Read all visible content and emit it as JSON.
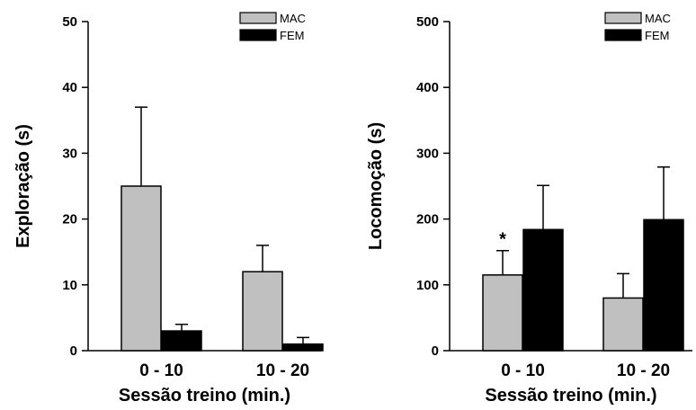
{
  "chart_data": [
    {
      "type": "bar",
      "categories": [
        "0 - 10",
        "10 - 20"
      ],
      "series": [
        {
          "name": "MAC",
          "values": [
            25,
            12
          ],
          "errors": [
            12,
            4
          ],
          "color": "#c0c0c0"
        },
        {
          "name": "FEM",
          "values": [
            3,
            1
          ],
          "errors": [
            1,
            1
          ],
          "color": "#000000"
        }
      ],
      "xlabel": "Sessão treino (min.)",
      "ylabel": "Exploração (s)",
      "ylim": [
        0,
        50
      ],
      "yticks": [
        "0",
        "10",
        "20",
        "30",
        "40",
        "50"
      ],
      "grid": false,
      "legend": "top-right",
      "annotations": []
    },
    {
      "type": "bar",
      "categories": [
        "0 - 10",
        "10 - 20"
      ],
      "series": [
        {
          "name": "MAC",
          "values": [
            115,
            80
          ],
          "errors": [
            37,
            37
          ],
          "color": "#c0c0c0"
        },
        {
          "name": "FEM",
          "values": [
            184,
            199
          ],
          "errors": [
            67,
            80
          ],
          "color": "#000000"
        }
      ],
      "xlabel": "Sessão treino (min.)",
      "ylabel": "Locomoção (s)",
      "ylim": [
        0,
        500
      ],
      "yticks": [
        "0",
        "100",
        "200",
        "300",
        "400",
        "500"
      ],
      "grid": false,
      "legend": "top-right",
      "annotations": [
        {
          "text": "*",
          "category": 0,
          "series": 0
        }
      ]
    }
  ]
}
